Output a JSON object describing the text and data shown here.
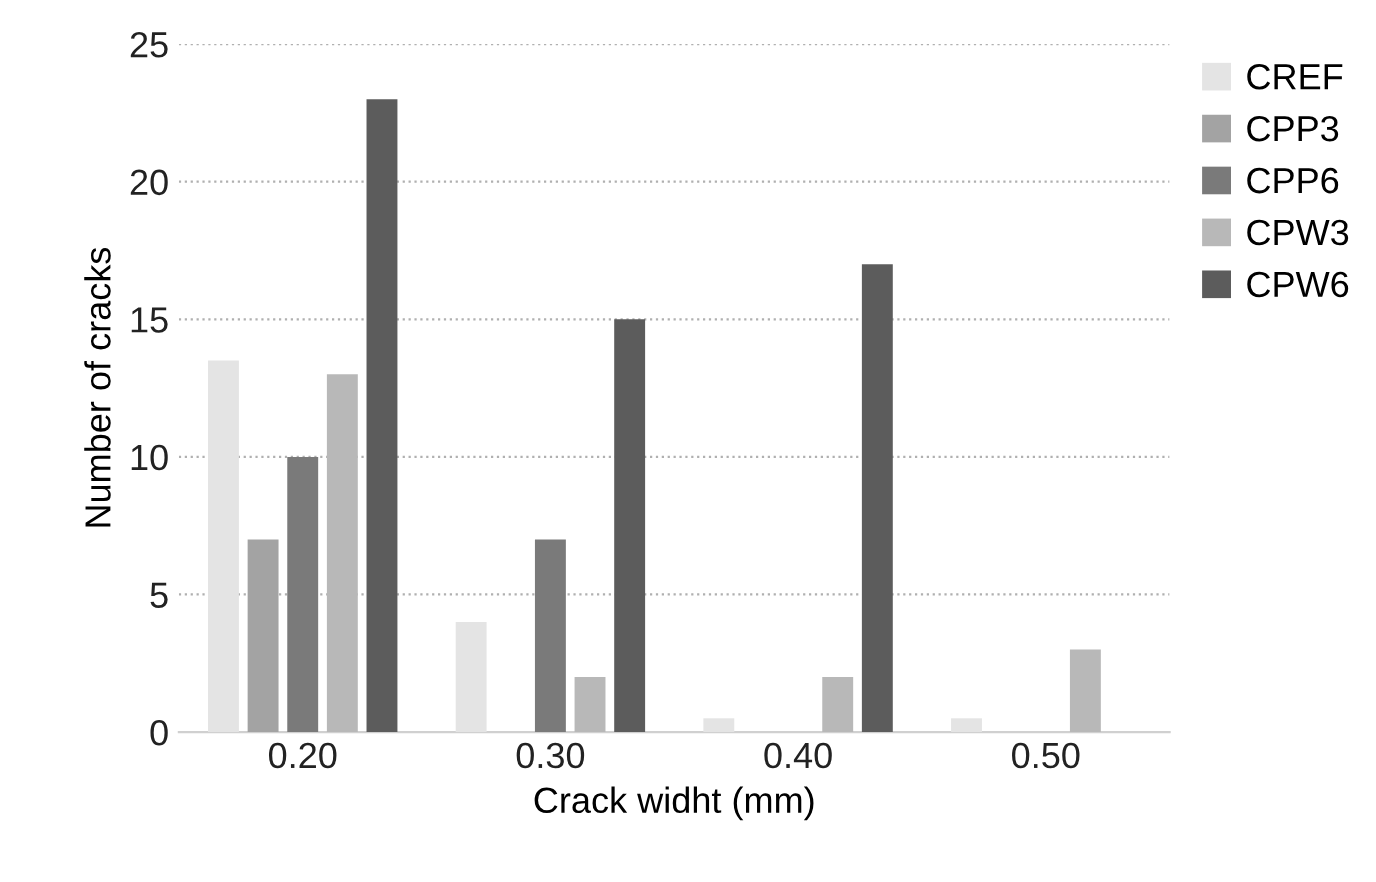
{
  "chart_data": {
    "type": "bar",
    "xlabel": "Crack widht (mm)",
    "ylabel": "Number of cracks",
    "categories": [
      "0.20",
      "0.30",
      "0.40",
      "0.50"
    ],
    "series": [
      {
        "name": "CREF",
        "color": "#e4e4e4",
        "values": [
          13.5,
          4,
          0.5,
          0.5
        ]
      },
      {
        "name": "CPP3",
        "color": "#a3a3a3",
        "values": [
          7,
          0,
          0,
          0
        ]
      },
      {
        "name": "CPP6",
        "color": "#7a7a7a",
        "values": [
          10,
          7,
          0,
          0
        ]
      },
      {
        "name": "CPW3",
        "color": "#b8b8b8",
        "values": [
          13,
          2,
          2,
          3
        ]
      },
      {
        "name": "CPW6",
        "color": "#5c5c5c",
        "values": [
          23,
          15,
          17,
          0
        ]
      }
    ],
    "ylim": [
      0,
      25
    ],
    "yticks": [
      0,
      5,
      10,
      15,
      20,
      25
    ],
    "grid": "y",
    "legend": "right"
  }
}
